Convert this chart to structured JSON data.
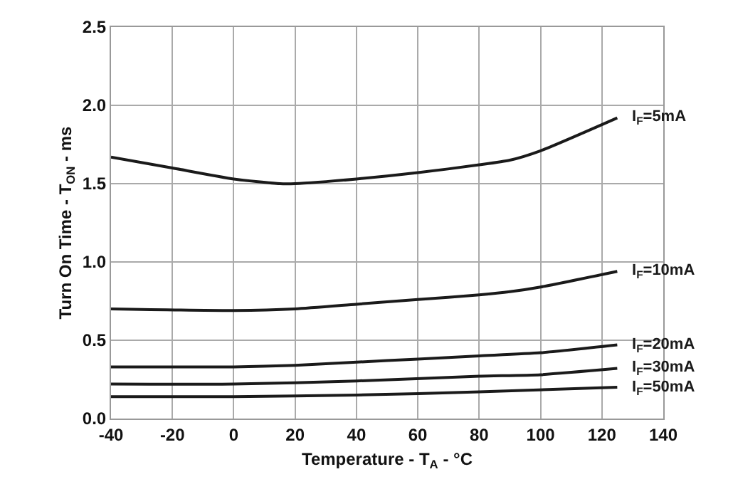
{
  "chart_data": {
    "type": "line",
    "xlabel": "Temperature - T$_{A}$ - °C",
    "ylabel": "Turn On Time - T$_{ON}$ - ms",
    "xlim": [
      -40,
      140
    ],
    "xticks": [
      -40,
      -20,
      0,
      20,
      40,
      60,
      80,
      100,
      120,
      140
    ],
    "ylim": [
      0,
      2.5
    ],
    "yticks": [
      {
        "value": 0,
        "label": "0.0"
      },
      {
        "value": 0.5,
        "label": "0.5"
      },
      {
        "value": 1,
        "label": "1.0"
      },
      {
        "value": 1.5,
        "label": "1.5"
      },
      {
        "value": 2,
        "label": "2.0"
      },
      {
        "value": 2.5,
        "label": "2.5"
      }
    ],
    "grid": true,
    "legend": false,
    "marker": "none",
    "line_style": "solid",
    "series": [
      {
        "name": "I$_{F}$=5mA",
        "color": "#1a1a1a",
        "x": [
          -40,
          -20,
          0,
          15,
          20,
          40,
          60,
          80,
          90,
          100,
          125
        ],
        "values": [
          1.67,
          1.6,
          1.53,
          1.5,
          1.5,
          1.53,
          1.57,
          1.62,
          1.65,
          1.71,
          1.92
        ]
      },
      {
        "name": "I$_{F}$=10mA",
        "color": "#1a1a1a",
        "x": [
          -40,
          0,
          20,
          40,
          60,
          80,
          90,
          100,
          125
        ],
        "values": [
          0.7,
          0.69,
          0.7,
          0.73,
          0.76,
          0.79,
          0.81,
          0.84,
          0.94
        ]
      },
      {
        "name": "I$_{F}$=20mA",
        "color": "#1a1a1a",
        "x": [
          -40,
          0,
          20,
          40,
          60,
          80,
          100,
          125
        ],
        "values": [
          0.33,
          0.33,
          0.34,
          0.36,
          0.38,
          0.4,
          0.42,
          0.47
        ]
      },
      {
        "name": "I$_{F}$=30mA",
        "color": "#1a1a1a",
        "x": [
          -40,
          0,
          40,
          80,
          100,
          125
        ],
        "values": [
          0.22,
          0.22,
          0.24,
          0.27,
          0.28,
          0.32
        ]
      },
      {
        "name": "I$_{F}$=50mA",
        "color": "#1a1a1a",
        "x": [
          -40,
          0,
          40,
          80,
          125
        ],
        "values": [
          0.14,
          0.14,
          0.15,
          0.17,
          0.2
        ]
      }
    ]
  }
}
